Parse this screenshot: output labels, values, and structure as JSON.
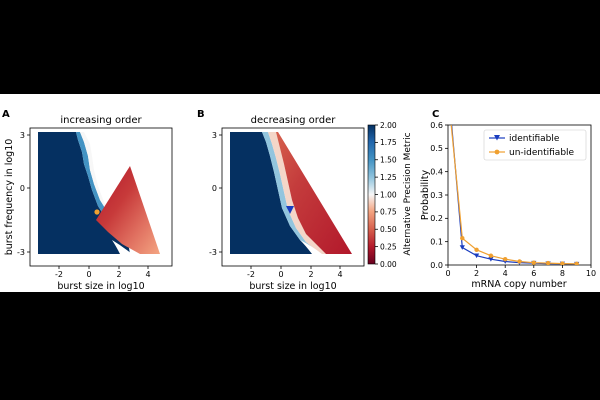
{
  "panels": {
    "A": {
      "letter": "A",
      "title": "increasing order",
      "xlabel": "burst size in log10",
      "ylabel": "burst frequency in log10",
      "xticks": [
        "-2",
        "0",
        "2",
        "4"
      ],
      "yticks": [
        "3",
        "0",
        "-3"
      ],
      "marker_color": "#f0a030"
    },
    "B": {
      "letter": "B",
      "title": "decreasing order",
      "xlabel": "burst size in log10",
      "xticks": [
        "-2",
        "0",
        "2",
        "4"
      ],
      "yticks": [
        "3",
        "0",
        "-3"
      ],
      "marker_color": "#1a3dbf"
    },
    "colorbar": {
      "label": "Alternative Precision Metric",
      "ticks": [
        "2.00",
        "1.75",
        "1.50",
        "1.25",
        "1.00",
        "0.75",
        "0.50",
        "0.25",
        "0.00"
      ],
      "low_color": "#67001f",
      "mid_color": "#f7f7f7",
      "high_color": "#053061"
    },
    "C": {
      "letter": "C",
      "xlabel": "mRNA copy number",
      "ylabel": "Probability",
      "xticks": [
        "0",
        "2",
        "4",
        "6",
        "8",
        "10"
      ],
      "yticks": [
        "0.0",
        "0.1",
        "0.2",
        "0.3",
        "0.4",
        "0.5",
        "0.6"
      ]
    }
  },
  "chart_data": [
    {
      "type": "heatmap",
      "title": "increasing order",
      "xlabel": "burst size in log10",
      "ylabel": "burst frequency in log10",
      "xlim": [
        -3.5,
        5.5
      ],
      "ylim": [
        -3.5,
        3.5
      ],
      "colormap": "RdBu",
      "vmin": 0.0,
      "vmax": 2.0,
      "marker": {
        "x": 0.8,
        "y": -1.0,
        "shape": "circle",
        "color": "#f0a030"
      }
    },
    {
      "type": "heatmap",
      "title": "decreasing order",
      "xlabel": "burst size in log10",
      "xlim": [
        -3.5,
        5.5
      ],
      "ylim": [
        -3.5,
        3.5
      ],
      "colormap": "RdBu",
      "vmin": 0.0,
      "vmax": 2.0,
      "marker": {
        "x": 0.8,
        "y": -1.0,
        "shape": "triangle-down",
        "color": "#1a3dbf"
      }
    },
    {
      "type": "line",
      "xlabel": "mRNA copy number",
      "ylabel": "Probability",
      "xlim": [
        0,
        10
      ],
      "ylim": [
        0,
        0.6
      ],
      "legend": "top-right",
      "x": [
        0,
        1,
        2,
        3,
        4,
        5,
        6,
        7,
        8,
        9
      ],
      "series": [
        {
          "name": "identifiable",
          "color": "#1a3dbf",
          "marker": "triangle-down",
          "values": [
            0.78,
            0.075,
            0.04,
            0.025,
            0.015,
            0.01,
            0.008,
            0.006,
            0.005,
            0.004
          ]
        },
        {
          "name": "un-identifiable",
          "color": "#f0a030",
          "marker": "circle",
          "values": [
            0.74,
            0.115,
            0.065,
            0.04,
            0.025,
            0.015,
            0.01,
            0.008,
            0.006,
            0.005
          ]
        }
      ]
    }
  ]
}
